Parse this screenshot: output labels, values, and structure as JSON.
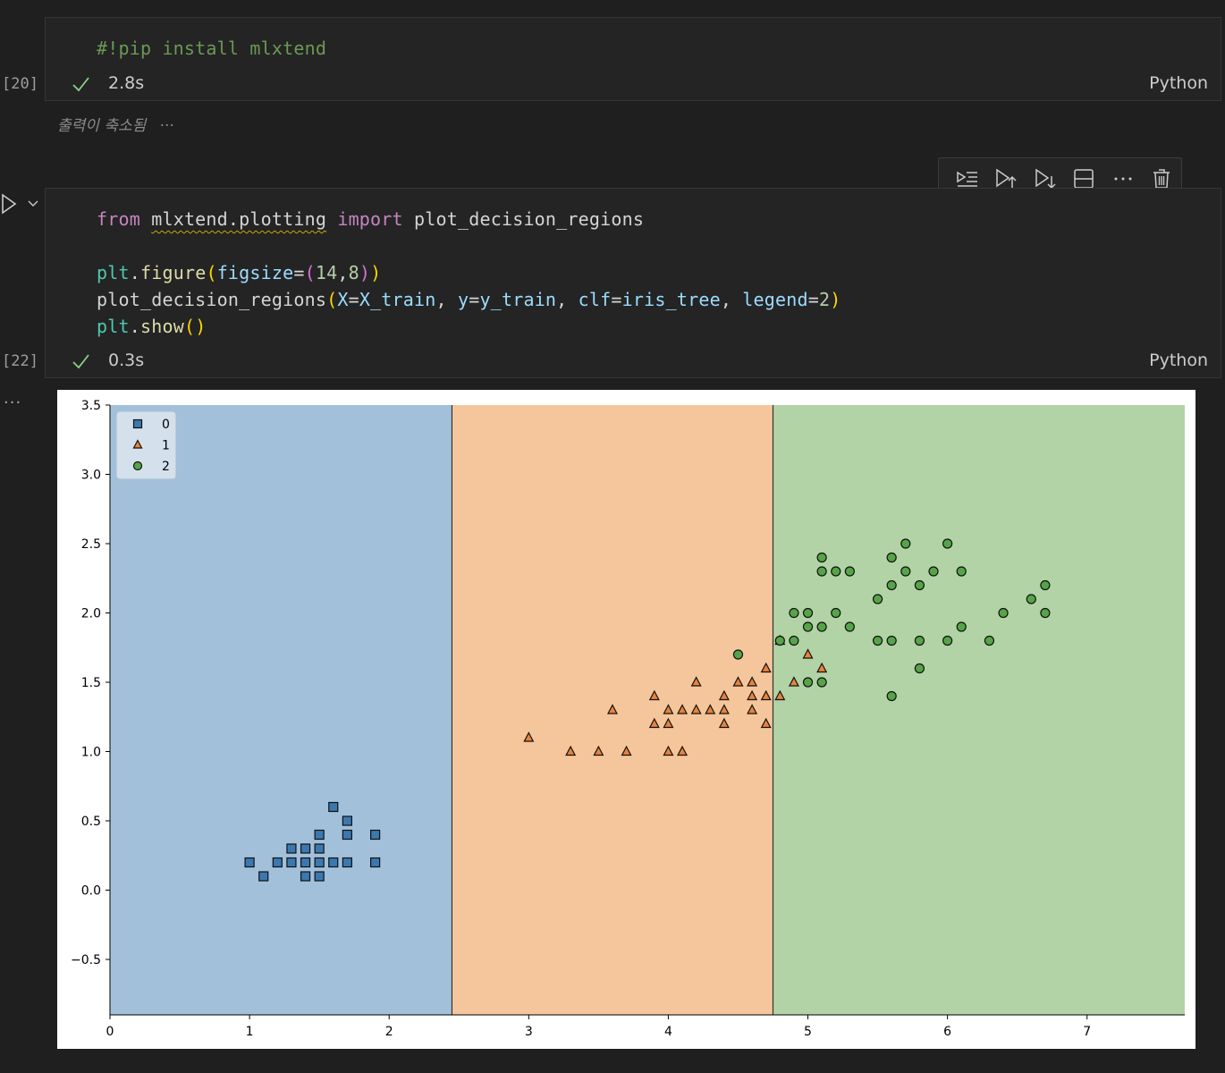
{
  "cell1": {
    "code": "#!pip install mlxtend",
    "exec_count": "[20]",
    "time": "2.8s",
    "lang": "Python",
    "collapsed_text": "출력이 축소됨",
    "collapsed_dots": "···"
  },
  "cell2": {
    "line1": {
      "kw_from": "from",
      "module": "mlxtend.plotting",
      "kw_import": "import",
      "name": "plot_decision_regions"
    },
    "line2": {
      "obj": "plt",
      "fn": "figure",
      "param": "figsize",
      "v1": "14",
      "v2": "8"
    },
    "line3": {
      "fn": "plot_decision_regions",
      "p1": "X",
      "a1": "X_train",
      "p2": "y",
      "a2": "y_train",
      "p3": "clf",
      "a3": "iris_tree",
      "p4": "legend",
      "v4": "2"
    },
    "line4": {
      "obj": "plt",
      "fn": "show"
    },
    "exec_count": "[22]",
    "time": "0.3s",
    "lang": "Python"
  },
  "toolbar": {
    "icons": [
      "run-by-line-icon",
      "execute-above-icon",
      "execute-below-icon",
      "split-cell-icon",
      "more-icon",
      "delete-icon"
    ]
  },
  "output": {
    "dots": "···"
  },
  "colors": {
    "region0": "#a2c0da",
    "region1": "#f5c69c",
    "region2": "#b2d3a5",
    "class0": "#3b78b0",
    "class1": "#e8833a",
    "class2": "#55a548",
    "boundary": "#333333"
  },
  "chart_data": {
    "type": "scatter",
    "title": "",
    "xlabel": "",
    "ylabel": "",
    "xlim": [
      0,
      7.7
    ],
    "ylim": [
      -0.9,
      3.5
    ],
    "xticks": [
      "0",
      "1",
      "2",
      "3",
      "4",
      "5",
      "6",
      "7"
    ],
    "xtick_values": [
      0,
      1,
      2,
      3,
      4,
      5,
      6,
      7
    ],
    "yticks": [
      "−0.5",
      "0.0",
      "0.5",
      "1.0",
      "1.5",
      "2.0",
      "2.5",
      "3.0",
      "3.5"
    ],
    "ytick_values": [
      -0.5,
      0.0,
      0.5,
      1.0,
      1.5,
      2.0,
      2.5,
      3.0,
      3.5
    ],
    "decision_boundaries": [
      2.45,
      4.75
    ],
    "legend_position": "top-left",
    "series": [
      {
        "name": "0",
        "marker": "square",
        "points": [
          [
            1.0,
            0.2
          ],
          [
            1.1,
            0.1
          ],
          [
            1.2,
            0.2
          ],
          [
            1.3,
            0.2
          ],
          [
            1.3,
            0.3
          ],
          [
            1.4,
            0.1
          ],
          [
            1.4,
            0.2
          ],
          [
            1.4,
            0.3
          ],
          [
            1.5,
            0.1
          ],
          [
            1.5,
            0.2
          ],
          [
            1.5,
            0.3
          ],
          [
            1.5,
            0.4
          ],
          [
            1.6,
            0.2
          ],
          [
            1.6,
            0.6
          ],
          [
            1.7,
            0.2
          ],
          [
            1.7,
            0.4
          ],
          [
            1.7,
            0.5
          ],
          [
            1.9,
            0.2
          ],
          [
            1.9,
            0.4
          ]
        ]
      },
      {
        "name": "1",
        "marker": "triangle",
        "points": [
          [
            3.0,
            1.1
          ],
          [
            3.3,
            1.0
          ],
          [
            3.5,
            1.0
          ],
          [
            3.6,
            1.3
          ],
          [
            3.7,
            1.0
          ],
          [
            3.9,
            1.2
          ],
          [
            3.9,
            1.4
          ],
          [
            4.0,
            1.0
          ],
          [
            4.0,
            1.2
          ],
          [
            4.0,
            1.3
          ],
          [
            4.1,
            1.0
          ],
          [
            4.1,
            1.3
          ],
          [
            4.2,
            1.3
          ],
          [
            4.2,
            1.5
          ],
          [
            4.3,
            1.3
          ],
          [
            4.4,
            1.2
          ],
          [
            4.4,
            1.3
          ],
          [
            4.4,
            1.4
          ],
          [
            4.5,
            1.5
          ],
          [
            4.6,
            1.3
          ],
          [
            4.6,
            1.4
          ],
          [
            4.6,
            1.5
          ],
          [
            4.7,
            1.2
          ],
          [
            4.7,
            1.4
          ],
          [
            4.7,
            1.6
          ],
          [
            4.8,
            1.4
          ],
          [
            4.8,
            1.8
          ],
          [
            4.9,
            1.5
          ],
          [
            5.0,
            1.7
          ],
          [
            5.1,
            1.6
          ]
        ]
      },
      {
        "name": "2",
        "marker": "circle",
        "points": [
          [
            4.5,
            1.7
          ],
          [
            4.8,
            1.8
          ],
          [
            4.9,
            1.8
          ],
          [
            4.9,
            2.0
          ],
          [
            5.0,
            1.5
          ],
          [
            5.0,
            1.9
          ],
          [
            5.0,
            2.0
          ],
          [
            5.1,
            1.5
          ],
          [
            5.1,
            1.9
          ],
          [
            5.1,
            2.3
          ],
          [
            5.1,
            2.4
          ],
          [
            5.2,
            2.0
          ],
          [
            5.2,
            2.3
          ],
          [
            5.3,
            1.9
          ],
          [
            5.3,
            2.3
          ],
          [
            5.5,
            1.8
          ],
          [
            5.5,
            2.1
          ],
          [
            5.6,
            1.4
          ],
          [
            5.6,
            1.8
          ],
          [
            5.6,
            2.2
          ],
          [
            5.6,
            2.4
          ],
          [
            5.7,
            2.3
          ],
          [
            5.7,
            2.5
          ],
          [
            5.8,
            1.6
          ],
          [
            5.8,
            1.8
          ],
          [
            5.8,
            2.2
          ],
          [
            5.9,
            2.3
          ],
          [
            6.0,
            1.8
          ],
          [
            6.0,
            2.5
          ],
          [
            6.1,
            1.9
          ],
          [
            6.1,
            2.3
          ],
          [
            6.3,
            1.8
          ],
          [
            6.4,
            2.0
          ],
          [
            6.6,
            2.1
          ],
          [
            6.7,
            2.0
          ],
          [
            6.7,
            2.2
          ]
        ]
      }
    ]
  }
}
